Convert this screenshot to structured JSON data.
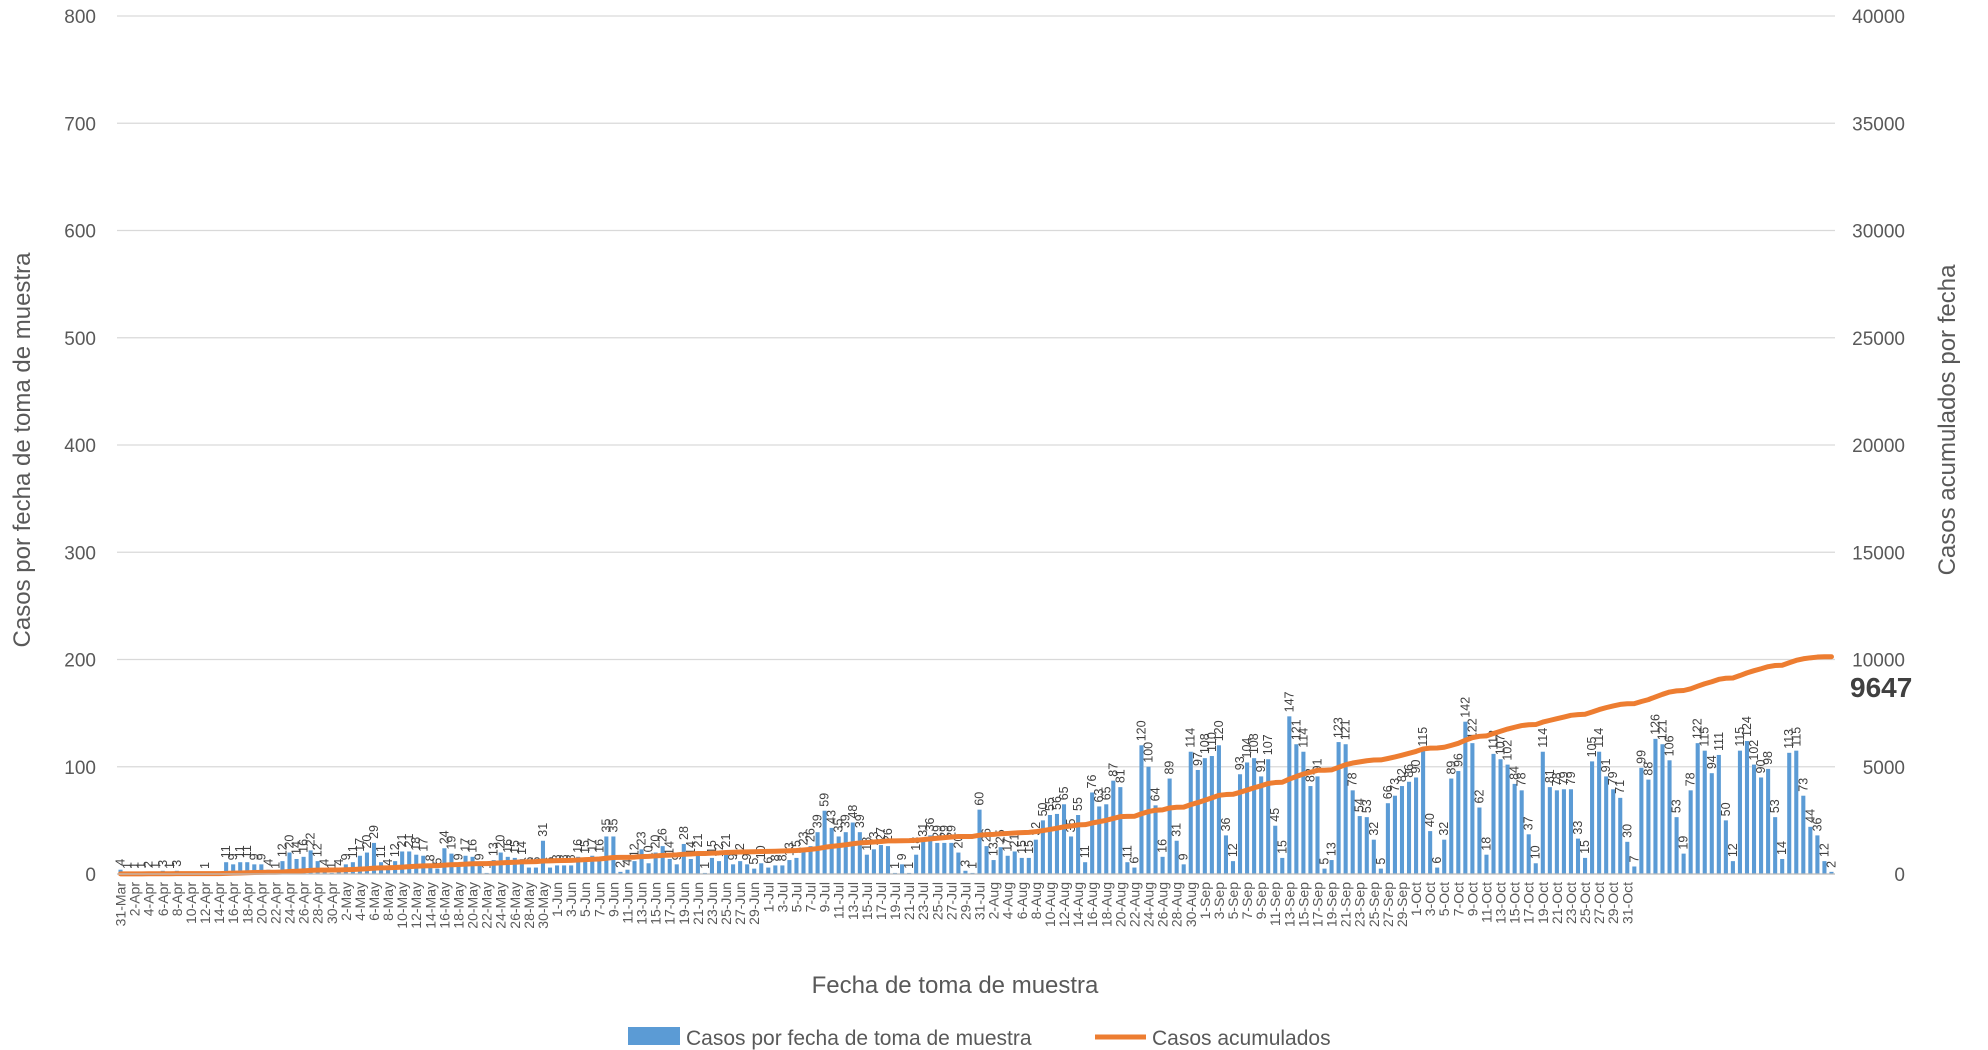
{
  "chart_data": {
    "type": "bar",
    "title": "",
    "xlabel": "Fecha de toma de muestra",
    "ylabel": "Casos por fecha de toma de muestra",
    "y2label": "Casos acumulados por fecha",
    "ylim": [
      0,
      800
    ],
    "y2lim": [
      0,
      40000
    ],
    "yticks": [
      "0",
      "100",
      "200",
      "300",
      "400",
      "500",
      "600",
      "700",
      "800"
    ],
    "y2ticks": [
      "0",
      "5000",
      "10000",
      "15000",
      "20000",
      "25000",
      "30000",
      "35000",
      "40000"
    ],
    "grid": true,
    "legend_position": "bottom",
    "series": [
      {
        "name": "Casos por fecha de toma de muestra",
        "type": "bar",
        "color": "#5B9BD5",
        "axis": "left"
      },
      {
        "name": "Casos acumulados",
        "type": "line",
        "color": "#ED7D31",
        "axis": "right"
      }
    ],
    "final_cumulative_label": "9647",
    "start_month": "Mar",
    "values": [
      4,
      1,
      1,
      1,
      2,
      1,
      3,
      1,
      3,
      0,
      0,
      0,
      1,
      0,
      0,
      11,
      9,
      11,
      11,
      9,
      9,
      4,
      1,
      12,
      20,
      14,
      16,
      22,
      12,
      4,
      1,
      4,
      9,
      11,
      17,
      20,
      29,
      11,
      4,
      12,
      21,
      21,
      18,
      17,
      8,
      5,
      24,
      19,
      9,
      17,
      16,
      9,
      1,
      13,
      20,
      16,
      15,
      14,
      6,
      6,
      31,
      6,
      8,
      8,
      8,
      16,
      15,
      17,
      16,
      35,
      35,
      2,
      4,
      12,
      23,
      10,
      20,
      26,
      14,
      9,
      28,
      14,
      21,
      1,
      15,
      12,
      21,
      9,
      12,
      9,
      5,
      10,
      6,
      8,
      8,
      13,
      15,
      23,
      26,
      39,
      59,
      43,
      35,
      39,
      48,
      39,
      18,
      23,
      27,
      26,
      1,
      9,
      1,
      18,
      31,
      36,
      29,
      29,
      29,
      20,
      3,
      1,
      60,
      26,
      13,
      25,
      17,
      21,
      15,
      15,
      32,
      50,
      55,
      56,
      65,
      35,
      55,
      11,
      76,
      63,
      65,
      87,
      81,
      11,
      6,
      120,
      100,
      64,
      16,
      89,
      31,
      9,
      114,
      97,
      108,
      110,
      120,
      36,
      12,
      93,
      104,
      108,
      91,
      107,
      45,
      15,
      147,
      121,
      114,
      82,
      91,
      5,
      13,
      123,
      121,
      78,
      54,
      53,
      32,
      5,
      66,
      73,
      82,
      86,
      90,
      115,
      40,
      6,
      32,
      89,
      96,
      142,
      122,
      62,
      18,
      112,
      107,
      102,
      84,
      78,
      37,
      10,
      114,
      81,
      78,
      79,
      79,
      33,
      15,
      105,
      114,
      91,
      79,
      71,
      30,
      7,
      99,
      88,
      126,
      121,
      106,
      53,
      19,
      78,
      122,
      115,
      94,
      111,
      50,
      12,
      115,
      124,
      102,
      90,
      98,
      53,
      14,
      113,
      115,
      73,
      44,
      36,
      12,
      2
    ],
    "x_labels": [
      "31-Mar",
      "2-Apr",
      "4-Apr",
      "6-Apr",
      "8-Apr",
      "10-Apr",
      "12-Apr",
      "14-Apr",
      "16-Apr",
      "18-Apr",
      "20-Apr",
      "22-Apr",
      "24-Apr",
      "26-Apr",
      "28-Apr",
      "30-Apr",
      "2-May",
      "4-May",
      "6-May",
      "8-May",
      "10-May",
      "12-May",
      "14-May",
      "16-May",
      "18-May",
      "20-May",
      "22-May",
      "24-May",
      "26-May",
      "28-May",
      "30-May",
      "1-Jun",
      "3-Jun",
      "5-Jun",
      "7-Jun",
      "9-Jun",
      "11-Jun",
      "13-Jun",
      "15-Jun",
      "17-Jun",
      "19-Jun",
      "21-Jun",
      "23-Jun",
      "25-Jun",
      "27-Jun",
      "29-Jun",
      "1-Jul",
      "3-Jul",
      "5-Jul",
      "7-Jul",
      "9-Jul",
      "11-Jul",
      "13-Jul",
      "15-Jul",
      "17-Jul",
      "19-Jul",
      "21-Jul",
      "23-Jul",
      "25-Jul",
      "27-Jul",
      "29-Jul",
      "31-Jul",
      "2-Aug",
      "4-Aug",
      "6-Aug",
      "8-Aug",
      "10-Aug",
      "12-Aug",
      "14-Aug",
      "16-Aug",
      "18-Aug",
      "20-Aug",
      "22-Aug",
      "24-Aug",
      "26-Aug",
      "28-Aug",
      "30-Aug",
      "1-Sep",
      "3-Sep",
      "5-Sep",
      "7-Sep",
      "9-Sep",
      "11-Sep",
      "13-Sep",
      "15-Sep",
      "17-Sep",
      "19-Sep",
      "21-Sep",
      "23-Sep",
      "25-Sep",
      "27-Sep",
      "29-Sep",
      "1-Oct",
      "3-Oct",
      "5-Oct",
      "7-Oct",
      "9-Oct",
      "11-Oct",
      "13-Oct",
      "15-Oct",
      "17-Oct",
      "19-Oct",
      "21-Oct",
      "23-Oct",
      "25-Oct",
      "27-Oct",
      "29-Oct",
      "31-Oct"
    ]
  }
}
